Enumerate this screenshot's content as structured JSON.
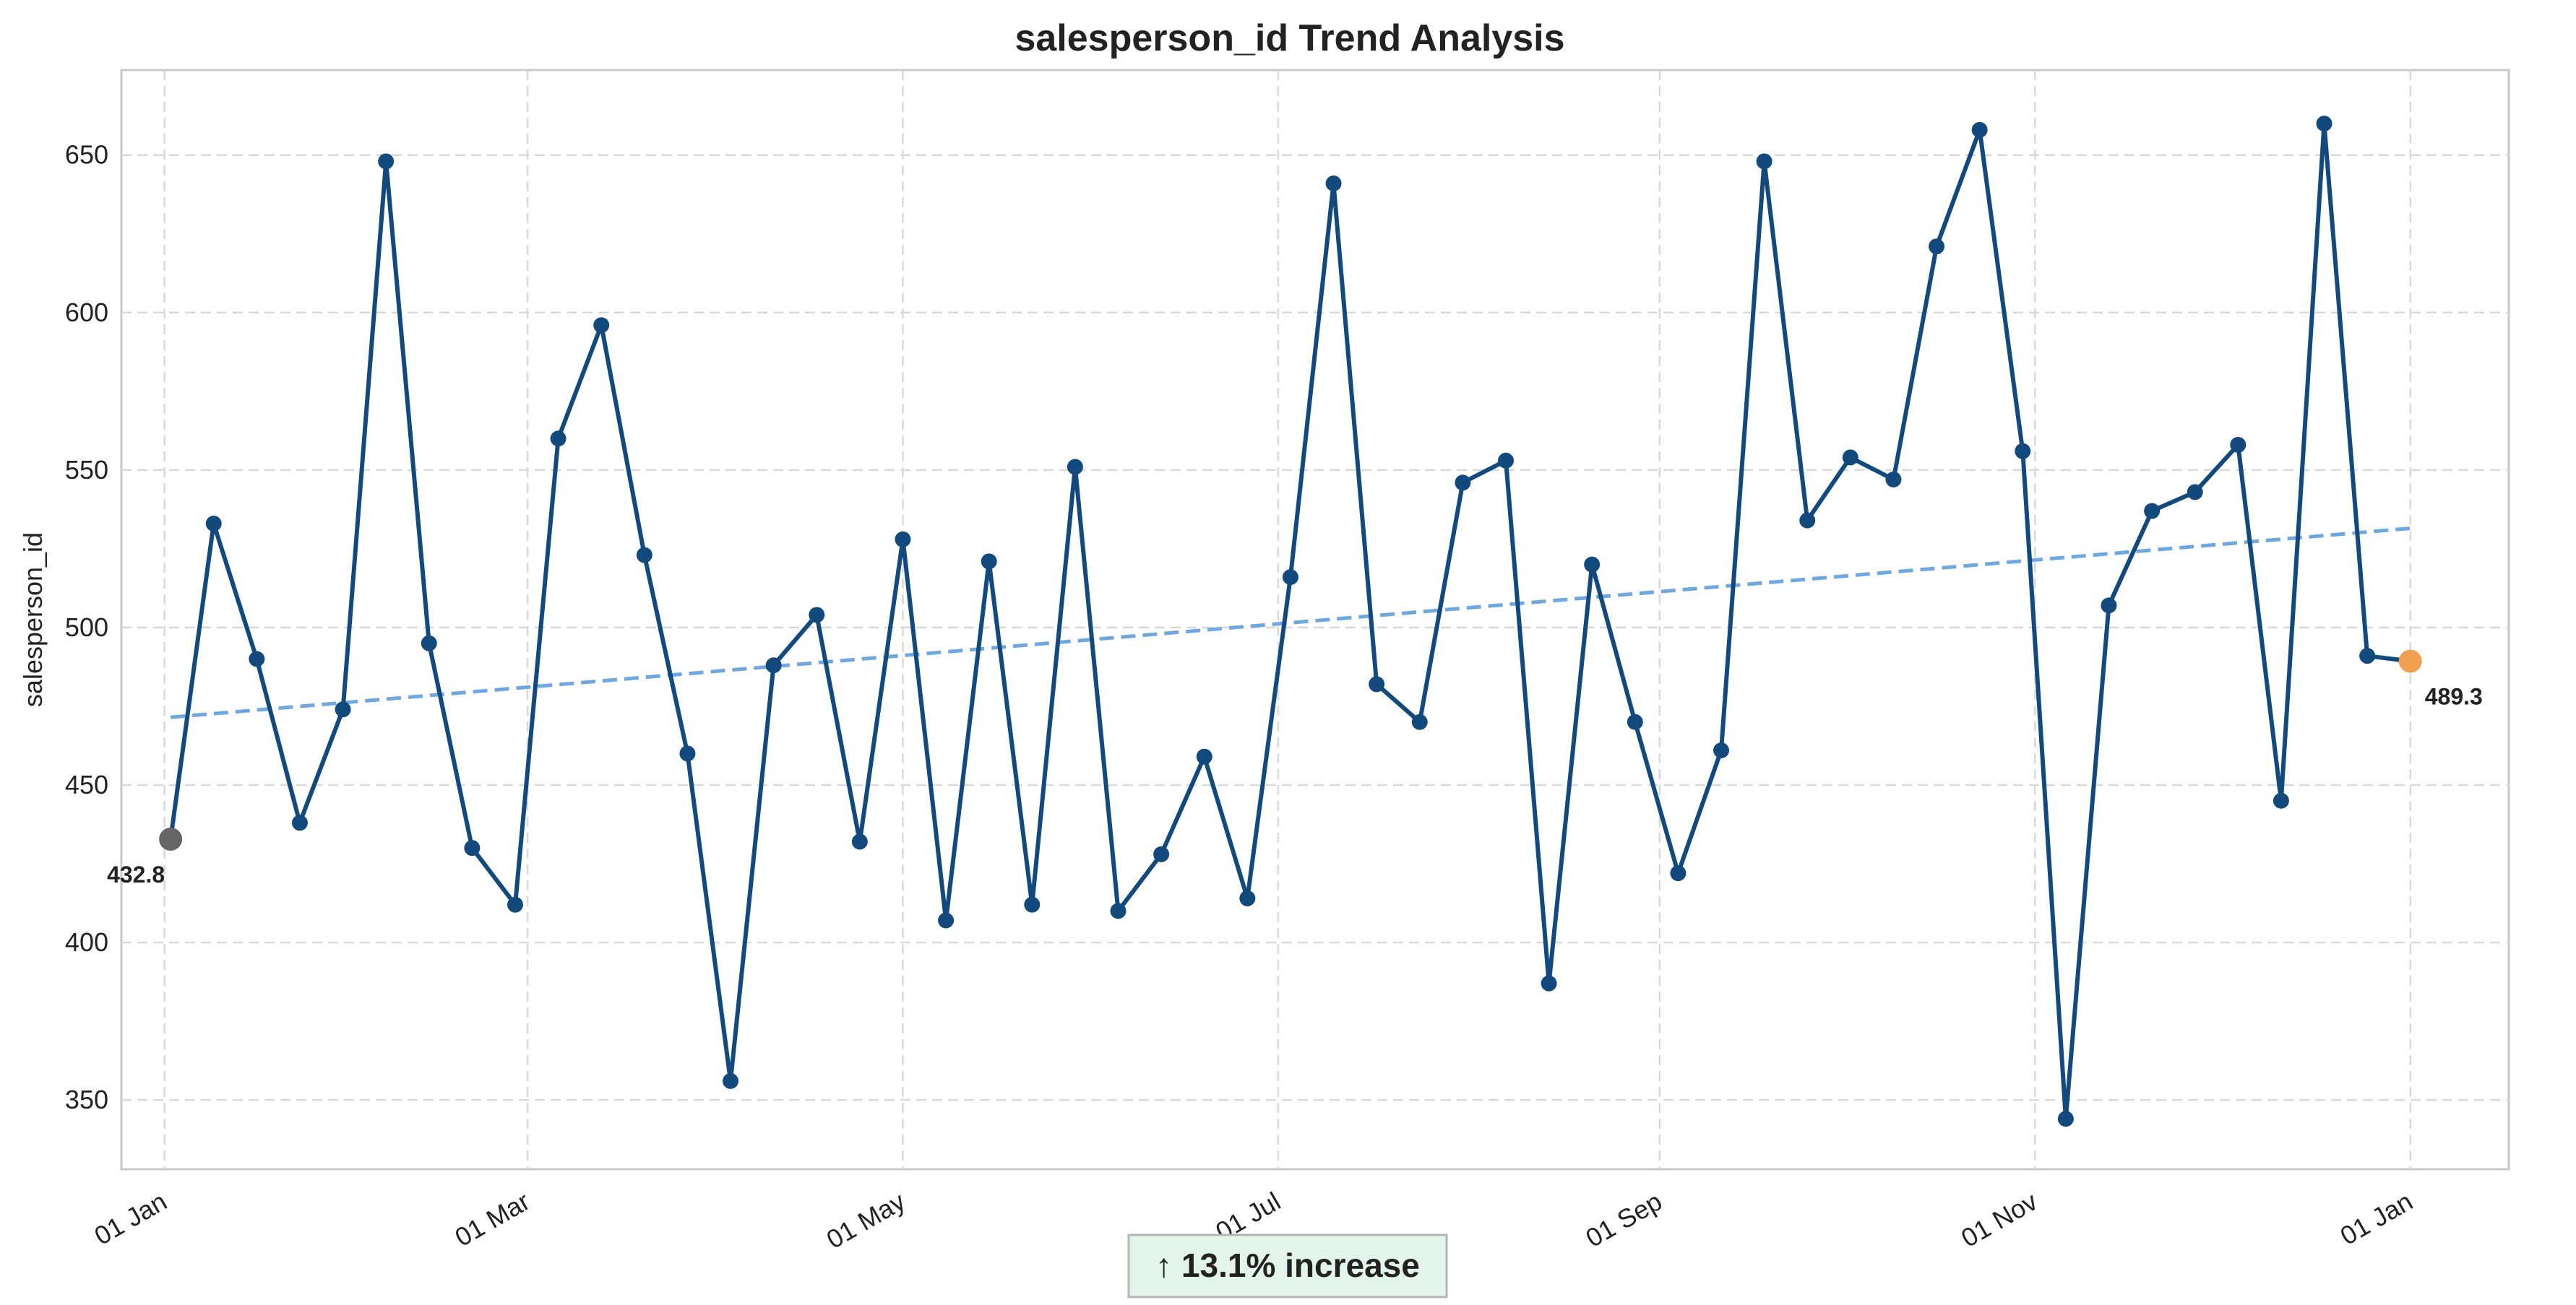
{
  "chart_data": {
    "type": "line",
    "title": "salesperson_id Trend Analysis",
    "xlabel": "",
    "ylabel": "salesperson_id",
    "x_ticks": [
      "01 Jan",
      "01 Mar",
      "01 May",
      "01 Jul",
      "01 Sep",
      "01 Nov",
      "01 Jan"
    ],
    "x_tick_dates": [
      "2023-01-01",
      "2023-03-01",
      "2023-05-01",
      "2023-07-01",
      "2023-09-01",
      "2023-11-01",
      "2024-01-01"
    ],
    "xlim": [
      "2022-12-25",
      "2024-01-17"
    ],
    "y_ticks": [
      350,
      400,
      450,
      500,
      550,
      600,
      650
    ],
    "ylim": [
      328,
      677
    ],
    "grid": true,
    "series": [
      {
        "color": "#124a7e",
        "x": [
          "2023-01-02",
          "2023-01-09",
          "2023-01-16",
          "2023-01-23",
          "2023-01-30",
          "2023-02-06",
          "2023-02-13",
          "2023-02-20",
          "2023-02-27",
          "2023-03-06",
          "2023-03-13",
          "2023-03-20",
          "2023-03-27",
          "2023-04-03",
          "2023-04-10",
          "2023-04-17",
          "2023-04-24",
          "2023-05-01",
          "2023-05-08",
          "2023-05-15",
          "2023-05-22",
          "2023-05-29",
          "2023-06-05",
          "2023-06-12",
          "2023-06-19",
          "2023-06-26",
          "2023-07-03",
          "2023-07-10",
          "2023-07-17",
          "2023-07-24",
          "2023-07-31",
          "2023-08-07",
          "2023-08-14",
          "2023-08-21",
          "2023-08-28",
          "2023-09-04",
          "2023-09-11",
          "2023-09-18",
          "2023-09-25",
          "2023-10-02",
          "2023-10-09",
          "2023-10-16",
          "2023-10-23",
          "2023-10-30",
          "2023-11-06",
          "2023-11-13",
          "2023-11-20",
          "2023-11-27",
          "2023-12-04",
          "2023-12-11",
          "2023-12-18",
          "2023-12-25",
          "2024-01-01"
        ],
        "values": [
          432.8,
          533,
          490,
          438,
          474,
          648,
          495,
          430,
          412,
          560,
          596,
          523,
          460,
          356,
          488,
          504,
          432,
          528,
          407,
          521,
          412,
          551,
          410,
          428,
          459,
          414,
          516,
          641,
          482,
          470,
          546,
          553,
          387,
          520,
          470,
          422,
          461,
          648,
          534,
          554,
          547,
          621,
          658,
          556,
          344,
          507,
          537,
          543,
          558,
          445,
          660,
          491,
          489.3
        ]
      }
    ],
    "trendline": {
      "color": "#6fa8e0",
      "start": {
        "x": "2023-01-02",
        "y": 471.5
      },
      "end": {
        "x": "2024-01-01",
        "y": 531.5
      }
    },
    "endpoints": {
      "start": {
        "x": "2023-01-02",
        "y": 432.8,
        "label": "432.8",
        "color": "#666666"
      },
      "end": {
        "x": "2024-01-01",
        "y": 489.3,
        "label": "489.3",
        "color": "#f0a050"
      }
    },
    "annotation": {
      "text": "↑ 13.1% increase",
      "background": "#e3f5ea",
      "border": "#b5b5b5"
    }
  }
}
